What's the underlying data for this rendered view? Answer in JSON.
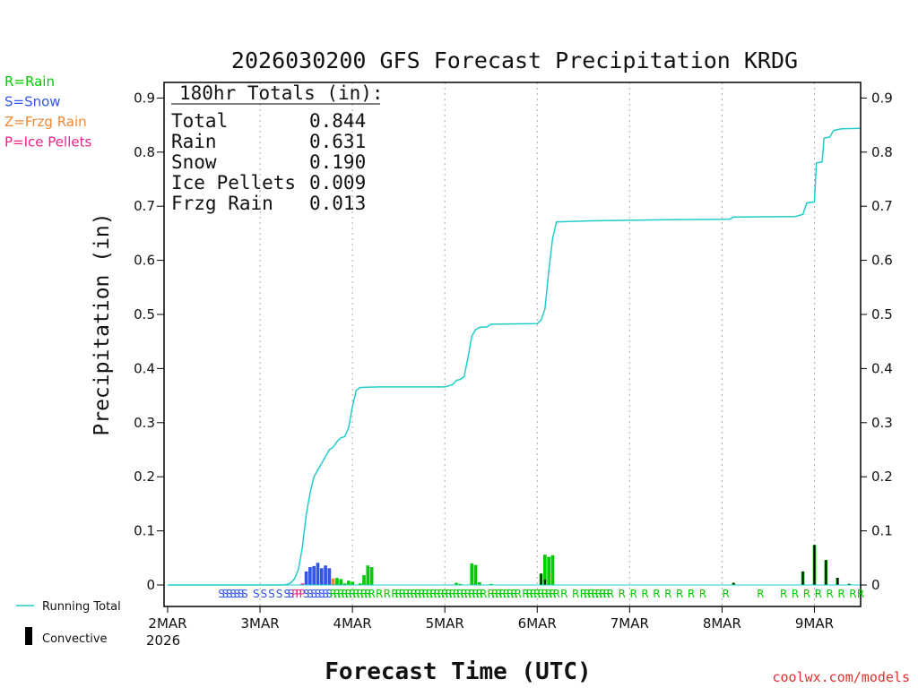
{
  "chart_data": {
    "type": "bar",
    "title": "2026030200 GFS Forecast Precipitation KRDG",
    "xlabel": "Forecast Time (UTC)",
    "ylabel": "Precipitation (in)",
    "ylim": [
      -0.04,
      0.94
    ],
    "x_unit": "hours since 2026-03-02 00Z",
    "xlim": [
      0,
      180
    ],
    "y_ticks": [
      "0",
      "0.1",
      "0.2",
      "0.3",
      "0.4",
      "0.5",
      "0.6",
      "0.7",
      "0.8",
      "0.9"
    ],
    "x_ticks": [
      {
        "hour": 0,
        "label": "2MAR"
      },
      {
        "hour": 24,
        "label": "3MAR"
      },
      {
        "hour": 48,
        "label": "4MAR"
      },
      {
        "hour": 72,
        "label": "5MAR"
      },
      {
        "hour": 96,
        "label": "6MAR"
      },
      {
        "hour": 120,
        "label": "7MAR"
      },
      {
        "hour": 144,
        "label": "8MAR"
      },
      {
        "hour": 168,
        "label": "9MAR"
      }
    ],
    "year_label": "2026",
    "legend_types": [
      {
        "label": "R=Rain",
        "color": "#00cc00"
      },
      {
        "label": "S=Snow",
        "color": "#3355ee"
      },
      {
        "label": "Z=Frzg Rain",
        "color": "#ee8833"
      },
      {
        "label": "P=Ice Pellets",
        "color": "#ee2288"
      }
    ],
    "legend_series": [
      {
        "label": "Running Total",
        "color": "#22cccc",
        "kind": "line"
      },
      {
        "label": "Convective",
        "color": "#000000",
        "kind": "bar"
      }
    ],
    "totals_box": {
      "header": "180hr Totals (in):",
      "rows": [
        {
          "name": "Total",
          "value": "0.844"
        },
        {
          "name": "Rain",
          "value": "0.631"
        },
        {
          "name": "Snow",
          "value": "0.190"
        },
        {
          "name": "Ice Pellets",
          "value": "0.009"
        },
        {
          "name": "Frzg Rain",
          "value": "0.013"
        }
      ]
    },
    "running_total": [
      [
        0,
        0
      ],
      [
        30,
        0
      ],
      [
        31,
        0.001
      ],
      [
        32,
        0.004
      ],
      [
        33,
        0.012
      ],
      [
        34,
        0.03
      ],
      [
        35,
        0.07
      ],
      [
        36,
        0.13
      ],
      [
        37,
        0.17
      ],
      [
        38,
        0.2
      ],
      [
        40,
        0.225
      ],
      [
        42,
        0.25
      ],
      [
        43,
        0.255
      ],
      [
        44,
        0.265
      ],
      [
        45,
        0.272
      ],
      [
        46,
        0.274
      ],
      [
        47,
        0.29
      ],
      [
        48,
        0.33
      ],
      [
        49,
        0.36
      ],
      [
        50,
        0.365
      ],
      [
        55,
        0.366
      ],
      [
        72,
        0.366
      ],
      [
        74,
        0.37
      ],
      [
        75,
        0.378
      ],
      [
        76,
        0.38
      ],
      [
        77,
        0.385
      ],
      [
        78,
        0.42
      ],
      [
        79,
        0.46
      ],
      [
        80,
        0.472
      ],
      [
        81,
        0.476
      ],
      [
        83,
        0.477
      ],
      [
        84,
        0.482
      ],
      [
        96,
        0.483
      ],
      [
        97,
        0.49
      ],
      [
        98,
        0.51
      ],
      [
        99,
        0.58
      ],
      [
        100,
        0.64
      ],
      [
        101,
        0.671
      ],
      [
        110,
        0.673
      ],
      [
        130,
        0.675
      ],
      [
        146,
        0.676
      ],
      [
        147,
        0.68
      ],
      [
        163,
        0.681
      ],
      [
        165,
        0.685
      ],
      [
        166,
        0.706
      ],
      [
        168,
        0.708
      ],
      [
        168.5,
        0.78
      ],
      [
        170,
        0.782
      ],
      [
        170.5,
        0.826
      ],
      [
        172,
        0.828
      ],
      [
        173,
        0.84
      ],
      [
        175,
        0.843
      ],
      [
        180,
        0.844
      ]
    ],
    "bars": [
      {
        "h": 35,
        "v": 0.003,
        "type": "P"
      },
      {
        "h": 36,
        "v": 0.025,
        "type": "S"
      },
      {
        "h": 37,
        "v": 0.033,
        "type": "S"
      },
      {
        "h": 38,
        "v": 0.035,
        "type": "S"
      },
      {
        "h": 39,
        "v": 0.041,
        "type": "S"
      },
      {
        "h": 40,
        "v": 0.031,
        "type": "S"
      },
      {
        "h": 41,
        "v": 0.036,
        "type": "S"
      },
      {
        "h": 42,
        "v": 0.031,
        "type": "S"
      },
      {
        "h": 43,
        "v": 0.012,
        "type": "Z"
      },
      {
        "h": 44,
        "v": 0.013,
        "type": "R"
      },
      {
        "h": 45,
        "v": 0.011,
        "type": "R"
      },
      {
        "h": 46,
        "v": 0.003,
        "type": "R"
      },
      {
        "h": 47,
        "v": 0.008,
        "type": "R"
      },
      {
        "h": 48,
        "v": 0.006,
        "type": "R"
      },
      {
        "h": 50,
        "v": 0.003,
        "type": "R"
      },
      {
        "h": 51,
        "v": 0.018,
        "type": "R"
      },
      {
        "h": 52,
        "v": 0.036,
        "type": "R"
      },
      {
        "h": 53,
        "v": 0.033,
        "type": "R"
      },
      {
        "h": 75,
        "v": 0.004,
        "type": "R"
      },
      {
        "h": 76,
        "v": 0.002,
        "type": "R"
      },
      {
        "h": 79,
        "v": 0.04,
        "type": "R"
      },
      {
        "h": 80,
        "v": 0.037,
        "type": "R"
      },
      {
        "h": 81,
        "v": 0.005,
        "type": "R"
      },
      {
        "h": 84,
        "v": 0.002,
        "type": "R"
      },
      {
        "h": 97,
        "v": 0.021,
        "type": "R",
        "conv": 0.021
      },
      {
        "h": 98,
        "v": 0.056,
        "type": "R",
        "conv": 0.01
      },
      {
        "h": 99,
        "v": 0.052,
        "type": "R"
      },
      {
        "h": 100,
        "v": 0.055,
        "type": "R"
      },
      {
        "h": 147,
        "v": 0.004,
        "type": "R",
        "conv": 0.004
      },
      {
        "h": 165,
        "v": 0.025,
        "type": "R",
        "conv": 0.025
      },
      {
        "h": 168,
        "v": 0.074,
        "type": "R",
        "conv": 0.074
      },
      {
        "h": 171,
        "v": 0.046,
        "type": "R",
        "conv": 0.046
      },
      {
        "h": 174,
        "v": 0.013,
        "type": "R",
        "conv": 0.013
      },
      {
        "h": 177,
        "v": 0.002,
        "type": "R",
        "conv": 0.002
      }
    ],
    "precip_markers": [
      {
        "h": 14,
        "t": "S"
      },
      {
        "h": 15,
        "t": "S"
      },
      {
        "h": 16,
        "t": "S"
      },
      {
        "h": 17,
        "t": "S"
      },
      {
        "h": 18,
        "t": "S"
      },
      {
        "h": 19,
        "t": "S"
      },
      {
        "h": 20,
        "t": "S"
      },
      {
        "h": 23,
        "t": "S"
      },
      {
        "h": 25,
        "t": "S"
      },
      {
        "h": 27,
        "t": "S"
      },
      {
        "h": 29,
        "t": "S"
      },
      {
        "h": 31,
        "t": "S"
      },
      {
        "h": 32,
        "t": "S"
      },
      {
        "h": 33,
        "t": "P"
      },
      {
        "h": 34,
        "t": "P"
      },
      {
        "h": 35,
        "t": "P"
      },
      {
        "h": 36,
        "t": "S"
      },
      {
        "h": 37,
        "t": "S"
      },
      {
        "h": 38,
        "t": "S"
      },
      {
        "h": 39,
        "t": "S"
      },
      {
        "h": 40,
        "t": "S"
      },
      {
        "h": 41,
        "t": "S"
      },
      {
        "h": 42,
        "t": "S"
      },
      {
        "h": 43,
        "t": "R"
      },
      {
        "h": 44,
        "t": "R"
      },
      {
        "h": 45,
        "t": "R"
      },
      {
        "h": 46,
        "t": "R"
      },
      {
        "h": 47,
        "t": "R"
      },
      {
        "h": 48,
        "t": "R"
      },
      {
        "h": 49,
        "t": "R"
      },
      {
        "h": 50,
        "t": "R"
      },
      {
        "h": 51,
        "t": "R"
      },
      {
        "h": 52,
        "t": "R"
      },
      {
        "h": 53,
        "t": "R"
      },
      {
        "h": 55,
        "t": "R"
      },
      {
        "h": 57,
        "t": "R"
      },
      {
        "h": 59,
        "t": "R"
      },
      {
        "h": 60,
        "t": "R"
      },
      {
        "h": 61,
        "t": "R"
      },
      {
        "h": 62,
        "t": "R"
      },
      {
        "h": 63,
        "t": "R"
      },
      {
        "h": 64,
        "t": "R"
      },
      {
        "h": 65,
        "t": "R"
      },
      {
        "h": 66,
        "t": "R"
      },
      {
        "h": 67,
        "t": "R"
      },
      {
        "h": 68,
        "t": "R"
      },
      {
        "h": 69,
        "t": "R"
      },
      {
        "h": 70,
        "t": "R"
      },
      {
        "h": 71,
        "t": "R"
      },
      {
        "h": 72,
        "t": "R"
      },
      {
        "h": 73,
        "t": "R"
      },
      {
        "h": 74,
        "t": "R"
      },
      {
        "h": 75,
        "t": "R"
      },
      {
        "h": 76,
        "t": "R"
      },
      {
        "h": 77,
        "t": "R"
      },
      {
        "h": 78,
        "t": "R"
      },
      {
        "h": 79,
        "t": "R"
      },
      {
        "h": 80,
        "t": "R"
      },
      {
        "h": 81,
        "t": "R"
      },
      {
        "h": 82,
        "t": "R"
      },
      {
        "h": 84,
        "t": "R"
      },
      {
        "h": 85,
        "t": "R"
      },
      {
        "h": 86,
        "t": "R"
      },
      {
        "h": 87,
        "t": "R"
      },
      {
        "h": 88,
        "t": "R"
      },
      {
        "h": 89,
        "t": "R"
      },
      {
        "h": 90,
        "t": "R"
      },
      {
        "h": 91,
        "t": "R"
      },
      {
        "h": 93,
        "t": "R"
      },
      {
        "h": 94,
        "t": "R"
      },
      {
        "h": 95,
        "t": "R"
      },
      {
        "h": 96,
        "t": "R"
      },
      {
        "h": 97,
        "t": "R"
      },
      {
        "h": 98,
        "t": "R"
      },
      {
        "h": 99,
        "t": "R"
      },
      {
        "h": 100,
        "t": "R"
      },
      {
        "h": 101,
        "t": "R"
      },
      {
        "h": 103,
        "t": "R"
      },
      {
        "h": 106,
        "t": "R"
      },
      {
        "h": 108,
        "t": "R"
      },
      {
        "h": 109,
        "t": "R"
      },
      {
        "h": 110,
        "t": "R"
      },
      {
        "h": 111,
        "t": "R"
      },
      {
        "h": 112,
        "t": "R"
      },
      {
        "h": 113,
        "t": "R"
      },
      {
        "h": 114,
        "t": "R"
      },
      {
        "h": 115,
        "t": "R"
      },
      {
        "h": 118,
        "t": "R"
      },
      {
        "h": 121,
        "t": "R"
      },
      {
        "h": 124,
        "t": "R"
      },
      {
        "h": 127,
        "t": "R"
      },
      {
        "h": 130,
        "t": "R"
      },
      {
        "h": 133,
        "t": "R"
      },
      {
        "h": 136,
        "t": "R"
      },
      {
        "h": 139,
        "t": "R"
      },
      {
        "h": 145,
        "t": "R"
      },
      {
        "h": 154,
        "t": "R"
      },
      {
        "h": 160,
        "t": "R"
      },
      {
        "h": 163,
        "t": "R"
      },
      {
        "h": 166,
        "t": "R"
      },
      {
        "h": 169,
        "t": "R"
      },
      {
        "h": 172,
        "t": "R"
      },
      {
        "h": 175,
        "t": "R"
      },
      {
        "h": 178,
        "t": "R"
      },
      {
        "h": 180,
        "t": "R"
      }
    ],
    "credit": "coolwx.com/models"
  }
}
